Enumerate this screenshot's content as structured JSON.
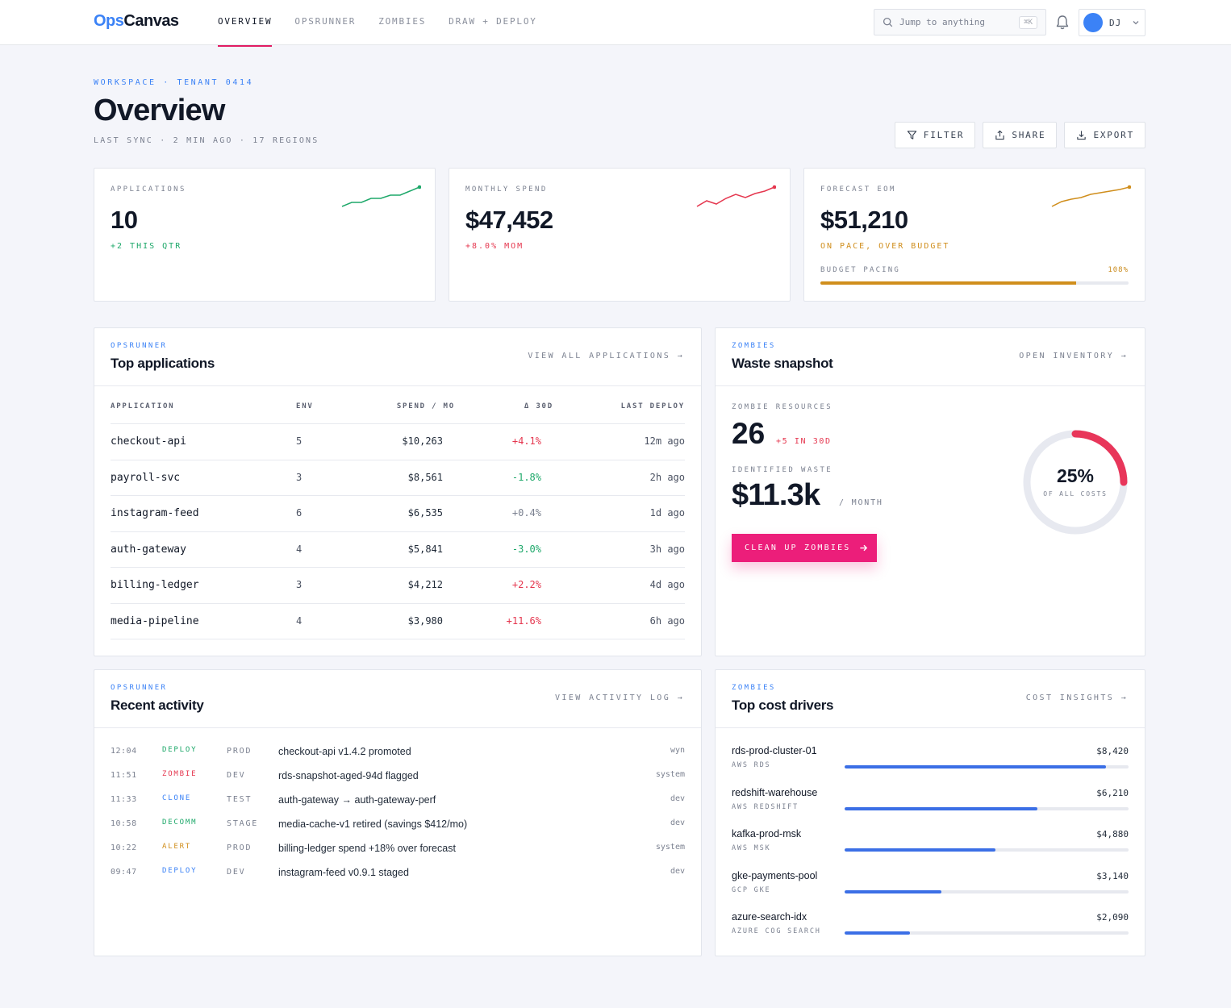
{
  "nav": {
    "logo_ops": "Ops",
    "logo_canvas": "Canvas",
    "items": [
      "OVERVIEW",
      "OPSRUNNER",
      "ZOMBIES",
      "DRAW + DEPLOY"
    ],
    "search_placeholder": "Jump to anything",
    "search_shortcut": "⌘K",
    "user_initials": "DJ"
  },
  "header": {
    "crumb": "WORKSPACE · TENANT 0414",
    "title": "Overview",
    "sync": "LAST SYNC · 2 MIN AGO · 17 REGIONS",
    "actions": [
      "FILTER",
      "SHARE",
      "EXPORT"
    ]
  },
  "kpis": [
    {
      "label": "APPLICATIONS",
      "value": "10",
      "sub": "+2 THIS QTR",
      "color": "#1ea86a"
    },
    {
      "label": "MONTHLY SPEND",
      "value": "$47,452",
      "sub": "+8.0% MOM",
      "color": "#e5374f"
    },
    {
      "label": "FORECAST EOM",
      "value": "$51,210",
      "sub": "ON PACE, OVER BUDGET",
      "color": "#d08e1c",
      "pacing_label": "BUDGET PACING",
      "pacing_value": "108%",
      "pacing_fill_pct": 83
    }
  ],
  "top_apps": {
    "eyebrow": "OPSRUNNER",
    "title": "Top applications",
    "link": "VIEW ALL APPLICATIONS →",
    "columns": [
      "APPLICATION",
      "ENV",
      "SPEND / MO",
      "Δ 30D",
      "LAST DEPLOY"
    ],
    "rows": [
      {
        "app": "checkout-api",
        "env": "5",
        "spend": "$10,263",
        "delta": "+4.1%",
        "dir": "pos",
        "last": "12m ago"
      },
      {
        "app": "payroll-svc",
        "env": "3",
        "spend": "$8,561",
        "delta": "-1.8%",
        "dir": "neg",
        "last": "2h ago"
      },
      {
        "app": "instagram-feed",
        "env": "6",
        "spend": "$6,535",
        "delta": "+0.4%",
        "dir": "neu",
        "last": "1d ago"
      },
      {
        "app": "auth-gateway",
        "env": "4",
        "spend": "$5,841",
        "delta": "-3.0%",
        "dir": "neg",
        "last": "3h ago"
      },
      {
        "app": "billing-ledger",
        "env": "3",
        "spend": "$4,212",
        "delta": "+2.2%",
        "dir": "pos",
        "last": "4d ago"
      },
      {
        "app": "media-pipeline",
        "env": "4",
        "spend": "$3,980",
        "delta": "+11.6%",
        "dir": "pos",
        "last": "6h ago"
      }
    ]
  },
  "waste": {
    "eyebrow": "ZOMBIES",
    "title": "Waste snapshot",
    "link": "OPEN INVENTORY →",
    "resources_label": "ZOMBIE RESOURCES",
    "resources_value": "26",
    "resources_delta": "+5 IN 30D",
    "waste_label": "IDENTIFIED WASTE",
    "waste_value": "$11.3k",
    "waste_unit": "/ MONTH",
    "cta": "CLEAN UP ZOMBIES",
    "donut_pct": "25%",
    "donut_value": 25,
    "donut_sub": "OF ALL COSTS"
  },
  "activity": {
    "eyebrow": "OPSRUNNER",
    "title": "Recent activity",
    "link": "VIEW ACTIVITY LOG →",
    "rows": [
      {
        "time": "12:04",
        "type": "DEPLOY",
        "cls": "t-deploy",
        "env": "PROD",
        "msg": "checkout-api v1.4.2 promoted",
        "who": "wyn"
      },
      {
        "time": "11:51",
        "type": "ZOMBIE",
        "cls": "t-zombie",
        "env": "DEV",
        "msg": "rds-snapshot-aged-94d flagged",
        "who": "system"
      },
      {
        "time": "11:33",
        "type": "CLONE",
        "cls": "t-clone",
        "env": "TEST",
        "msg": "auth-gateway → auth-gateway-perf",
        "who": "dev"
      },
      {
        "time": "10:58",
        "type": "DECOMM",
        "cls": "t-decomm",
        "env": "STAGE",
        "msg": "media-cache-v1 retired (savings $412/mo)",
        "who": "dev"
      },
      {
        "time": "10:22",
        "type": "ALERT",
        "cls": "t-alert",
        "env": "PROD",
        "msg": "billing-ledger spend +18% over forecast",
        "who": "system"
      },
      {
        "time": "09:47",
        "type": "DEPLOY",
        "cls": "t-deploy2",
        "env": "DEV",
        "msg": "instagram-feed v0.9.1 staged",
        "who": "dev"
      }
    ]
  },
  "cost_drivers": {
    "eyebrow": "ZOMBIES",
    "title": "Top cost drivers",
    "link": "COST INSIGHTS →",
    "rows": [
      {
        "name": "rds-prod-cluster-01",
        "sub": "AWS RDS",
        "value": "$8,420",
        "pct": 92
      },
      {
        "name": "redshift-warehouse",
        "sub": "AWS REDSHIFT",
        "value": "$6,210",
        "pct": 68
      },
      {
        "name": "kafka-prod-msk",
        "sub": "AWS MSK",
        "value": "$4,880",
        "pct": 53
      },
      {
        "name": "gke-payments-pool",
        "sub": "GCP GKE",
        "value": "$3,140",
        "pct": 34
      },
      {
        "name": "azure-search-idx",
        "sub": "AZURE COG SEARCH",
        "value": "$2,090",
        "pct": 23
      }
    ]
  }
}
